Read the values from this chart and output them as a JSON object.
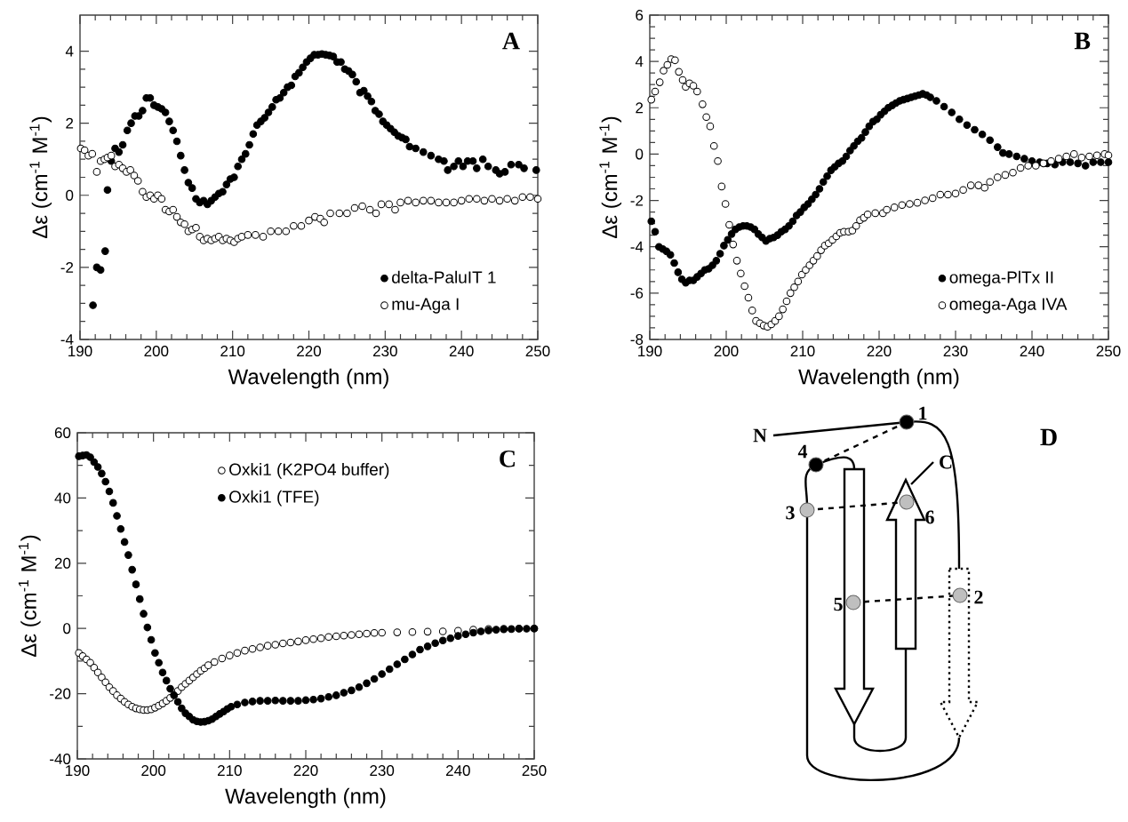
{
  "chart_data": [
    {
      "type": "scatter",
      "title": "A",
      "xlabel": "Wavelength (nm)",
      "ylabel": "Δε (cm$^{-1}$ M$^{-1}$)",
      "xlim": [
        190,
        250
      ],
      "ylim": [
        -4,
        5
      ],
      "xticks": [
        190,
        200,
        210,
        220,
        230,
        240,
        250
      ],
      "yticks": [
        -4,
        -2,
        0,
        2,
        4
      ],
      "legend": "bottom right",
      "series": [
        {
          "name": "delta-PaluIT 1",
          "color": "#000000",
          "x": [
            191.7,
            192.2,
            192.7,
            193.3,
            193.6,
            194.1,
            194.6,
            195.1,
            195.6,
            196.2,
            196.7,
            197.2,
            197.7,
            198.2,
            198.7,
            199.2,
            199.7,
            200.2,
            200.7,
            201.2,
            201.7,
            202.2,
            202.7,
            203.2,
            203.7,
            204.2,
            204.7,
            205.2,
            205.7,
            206.2,
            206.7,
            207.2,
            207.7,
            208.2,
            208.7,
            209.2,
            209.7,
            210.2,
            210.7,
            211.2,
            211.7,
            212.2,
            212.7,
            213.2,
            213.7,
            214.2,
            214.7,
            215.2,
            215.7,
            216.2,
            216.7,
            217.2,
            217.7,
            218.2,
            218.7,
            219.2,
            219.7,
            220.2,
            220.7,
            221.2,
            221.7,
            222.2,
            222.7,
            223.2,
            223.7,
            224.2,
            224.7,
            225.2,
            225.7,
            226.2,
            226.7,
            227.2,
            227.7,
            228.2,
            228.7,
            229.2,
            229.7,
            230.2,
            230.7,
            231.2,
            231.7,
            232.2,
            232.7,
            233.2,
            234,
            235,
            236,
            237,
            237.7,
            238.2,
            239,
            239.6,
            240.2,
            240.8,
            241.5,
            242,
            242.8,
            243.5,
            244.5,
            245,
            245.7,
            246.5,
            247.5,
            248.2,
            249.8
          ],
          "values": [
            -3.05,
            -2.0,
            -2.07,
            -1.55,
            0.15,
            0.95,
            1.3,
            1.2,
            1.4,
            1.8,
            2.0,
            2.2,
            2.2,
            2.35,
            2.7,
            2.7,
            2.5,
            2.45,
            2.4,
            2.3,
            2.05,
            1.8,
            1.5,
            1.1,
            0.7,
            0.35,
            0.2,
            -0.1,
            -0.2,
            -0.15,
            -0.25,
            -0.15,
            -0.05,
            0.05,
            0.1,
            0.3,
            0.45,
            0.5,
            0.8,
            1.0,
            1.15,
            1.4,
            1.7,
            1.95,
            2.05,
            2.15,
            2.3,
            2.45,
            2.65,
            2.7,
            2.85,
            3.0,
            3.05,
            3.3,
            3.4,
            3.55,
            3.7,
            3.8,
            3.9,
            3.9,
            3.92,
            3.9,
            3.88,
            3.85,
            3.7,
            3.7,
            3.5,
            3.45,
            3.35,
            3.15,
            2.85,
            2.9,
            2.75,
            2.6,
            2.35,
            2.25,
            2.05,
            1.95,
            1.85,
            1.75,
            1.65,
            1.6,
            1.55,
            1.35,
            1.3,
            1.2,
            1.1,
            1.0,
            0.95,
            0.7,
            0.8,
            0.95,
            0.8,
            0.95,
            0.95,
            0.75,
            1.0,
            0.8,
            0.7,
            0.6,
            0.65,
            0.85,
            0.85,
            0.75,
            0.7
          ]
        },
        {
          "name": "mu-Aga I",
          "color": "#ffffff",
          "x": [
            190.1,
            190.6,
            191.1,
            191.6,
            192.2,
            192.7,
            193.2,
            193.6,
            194.1,
            194.6,
            195.1,
            195.6,
            196.1,
            196.6,
            197.1,
            197.6,
            198.2,
            198.7,
            199.2,
            199.7,
            200.2,
            200.7,
            201.2,
            201.7,
            202.2,
            202.7,
            203.2,
            203.7,
            204.2,
            204.7,
            205.2,
            205.7,
            206.2,
            206.7,
            207.2,
            207.7,
            208.2,
            208.7,
            209.2,
            209.7,
            210.2,
            210.7,
            211.2,
            212,
            213,
            214,
            215,
            216,
            217,
            218,
            219,
            220,
            220.8,
            221.5,
            222,
            222.8,
            224,
            225,
            226,
            227,
            228,
            228.8,
            229.5,
            230.5,
            231.3,
            232,
            233,
            234,
            235,
            236,
            237,
            238,
            239,
            240,
            241,
            242,
            243,
            244,
            245,
            246,
            247,
            248,
            249,
            250
          ],
          "values": [
            1.3,
            1.25,
            1.1,
            1.15,
            0.65,
            0.95,
            1.0,
            1.05,
            1.1,
            0.8,
            0.85,
            0.75,
            0.65,
            0.7,
            0.55,
            0.4,
            0.1,
            -0.05,
            0.0,
            -0.1,
            0.0,
            -0.1,
            -0.4,
            -0.45,
            -0.4,
            -0.6,
            -0.75,
            -0.8,
            -1.0,
            -0.95,
            -0.9,
            -1.15,
            -1.25,
            -1.2,
            -1.25,
            -1.2,
            -1.15,
            -1.25,
            -1.2,
            -1.25,
            -1.3,
            -1.2,
            -1.15,
            -1.1,
            -1.1,
            -1.15,
            -1.0,
            -1.0,
            -1.0,
            -0.85,
            -0.85,
            -0.7,
            -0.6,
            -0.65,
            -0.75,
            -0.5,
            -0.5,
            -0.5,
            -0.35,
            -0.3,
            -0.4,
            -0.5,
            -0.25,
            -0.25,
            -0.4,
            -0.2,
            -0.15,
            -0.2,
            -0.15,
            -0.15,
            -0.2,
            -0.2,
            -0.2,
            -0.15,
            -0.1,
            -0.1,
            -0.15,
            -0.1,
            -0.15,
            -0.1,
            -0.15,
            -0.05,
            -0.05,
            -0.1
          ]
        }
      ]
    },
    {
      "type": "scatter",
      "title": "B",
      "xlabel": "Wavelength (nm)",
      "ylabel": "Δε (cm$^{-1}$ M$^{-1}$)",
      "xlim": [
        190,
        250
      ],
      "ylim": [
        -8,
        6
      ],
      "xticks": [
        190,
        200,
        210,
        220,
        230,
        240,
        250
      ],
      "yticks": [
        -8,
        -6,
        -4,
        -2,
        0,
        2,
        4,
        6
      ],
      "legend": "bottom right",
      "series": [
        {
          "name": "omega-PlTx II",
          "color": "#000000",
          "x": [
            190.2,
            190.7,
            191.2,
            191.7,
            192.2,
            192.7,
            193.2,
            193.7,
            194.2,
            194.7,
            195.2,
            195.7,
            196.2,
            196.7,
            197.2,
            197.7,
            198.2,
            198.7,
            199.2,
            199.7,
            200.2,
            200.7,
            201.2,
            201.7,
            202.2,
            202.7,
            203.2,
            203.7,
            204.2,
            204.7,
            205.2,
            205.7,
            206.2,
            206.7,
            207.2,
            207.7,
            208.2,
            208.7,
            209.2,
            209.7,
            210.2,
            210.7,
            211.2,
            211.7,
            212.2,
            212.7,
            213.2,
            213.7,
            214.2,
            214.7,
            215.2,
            215.7,
            216.2,
            216.7,
            217.2,
            217.7,
            218.2,
            218.7,
            219.2,
            219.7,
            220.2,
            220.7,
            221.2,
            221.7,
            222.2,
            222.7,
            223.2,
            223.7,
            224.2,
            224.7,
            225.2,
            225.7,
            226.2,
            226.7,
            227.5,
            228.5,
            229.5,
            230.5,
            231.5,
            232.5,
            233.5,
            234.5,
            235.5,
            236.2,
            237,
            238,
            239,
            240,
            241,
            242,
            243,
            244,
            245,
            246,
            247,
            248,
            249,
            250
          ],
          "values": [
            -2.9,
            -3.35,
            -4.0,
            -4.1,
            -4.2,
            -4.35,
            -4.7,
            -5.1,
            -5.4,
            -5.55,
            -5.45,
            -5.45,
            -5.3,
            -5.15,
            -5.0,
            -4.95,
            -4.8,
            -4.6,
            -4.3,
            -3.95,
            -3.7,
            -3.45,
            -3.25,
            -3.15,
            -3.1,
            -3.1,
            -3.15,
            -3.25,
            -3.45,
            -3.6,
            -3.75,
            -3.65,
            -3.6,
            -3.5,
            -3.35,
            -3.25,
            -3.1,
            -2.9,
            -2.65,
            -2.5,
            -2.3,
            -2.15,
            -1.95,
            -1.75,
            -1.5,
            -1.2,
            -0.95,
            -0.7,
            -0.55,
            -0.4,
            -0.3,
            -0.1,
            0.15,
            0.35,
            0.55,
            0.7,
            0.95,
            1.2,
            1.4,
            1.5,
            1.7,
            1.85,
            2.0,
            2.1,
            2.2,
            2.3,
            2.35,
            2.4,
            2.45,
            2.5,
            2.55,
            2.6,
            2.55,
            2.45,
            2.3,
            2.05,
            1.8,
            1.5,
            1.25,
            1.05,
            0.85,
            0.6,
            0.3,
            0.05,
            0.0,
            -0.1,
            -0.2,
            -0.3,
            -0.35,
            -0.4,
            -0.45,
            -0.35,
            -0.35,
            -0.4,
            -0.5,
            -0.35,
            -0.35,
            -0.35
          ]
        },
        {
          "name": "omega-Aga IVA",
          "color": "#ffffff",
          "x": [
            190.2,
            190.7,
            191.3,
            191.8,
            192.3,
            192.8,
            193.3,
            193.8,
            194.3,
            194.7,
            195.2,
            195.7,
            196.2,
            196.9,
            197.4,
            197.9,
            198.4,
            198.9,
            199.4,
            199.9,
            200.4,
            200.9,
            201.4,
            201.9,
            202.4,
            202.9,
            203.4,
            203.9,
            204.4,
            204.9,
            205.4,
            205.9,
            206.4,
            206.9,
            207.4,
            207.9,
            208.4,
            208.9,
            209.4,
            209.9,
            210.4,
            210.9,
            211.4,
            211.9,
            212.4,
            212.9,
            213.4,
            213.9,
            214.4,
            214.9,
            215.4,
            216,
            216.5,
            217,
            217.5,
            218,
            218.5,
            219.5,
            220.5,
            221,
            222,
            223,
            224,
            225,
            226,
            227,
            228,
            229,
            230,
            231,
            232,
            233,
            233.8,
            234.5,
            235.5,
            236.5,
            237.5,
            238.5,
            239.5,
            240.5,
            241.5,
            242.5,
            243.5,
            244.5,
            245.5,
            246.5,
            247.5,
            248.5,
            249.5,
            250
          ],
          "values": [
            2.35,
            2.7,
            3.1,
            3.6,
            3.85,
            4.1,
            4.05,
            3.55,
            3.2,
            2.9,
            3.05,
            2.95,
            2.7,
            2.15,
            1.6,
            1.2,
            0.35,
            -0.3,
            -1.4,
            -2.15,
            -3.05,
            -3.9,
            -4.6,
            -5.15,
            -5.7,
            -6.2,
            -6.75,
            -7.2,
            -7.3,
            -7.4,
            -7.45,
            -7.35,
            -7.2,
            -7.0,
            -6.7,
            -6.35,
            -6.0,
            -5.75,
            -5.5,
            -5.2,
            -5.0,
            -4.8,
            -4.6,
            -4.4,
            -4.15,
            -3.95,
            -3.85,
            -3.7,
            -3.55,
            -3.4,
            -3.35,
            -3.35,
            -3.3,
            -3.1,
            -2.85,
            -2.75,
            -2.6,
            -2.55,
            -2.55,
            -2.4,
            -2.3,
            -2.2,
            -2.15,
            -2.1,
            -2.0,
            -1.9,
            -1.75,
            -1.75,
            -1.7,
            -1.55,
            -1.35,
            -1.35,
            -1.45,
            -1.2,
            -1.0,
            -0.9,
            -0.8,
            -0.6,
            -0.5,
            -0.5,
            -0.4,
            -0.3,
            -0.2,
            -0.1,
            0.0,
            -0.15,
            -0.1,
            -0.05,
            0.0,
            -0.05
          ]
        }
      ]
    },
    {
      "type": "scatter",
      "title": "C",
      "xlabel": "Wavelength (nm)",
      "ylabel": "Δε (cm$^{-1}$ M$^{-1}$)",
      "xlim": [
        190,
        250
      ],
      "ylim": [
        -40,
        60
      ],
      "xticks": [
        190,
        200,
        210,
        220,
        230,
        240,
        250
      ],
      "yticks": [
        -40,
        -20,
        0,
        20,
        40,
        60
      ],
      "legend": "top",
      "series": [
        {
          "name": "Oxki1 (K2PO4 buffer)",
          "color": "#ffffff",
          "x": [
            190.2,
            190.7,
            191.2,
            191.7,
            192.2,
            192.7,
            193.2,
            193.7,
            194.2,
            194.7,
            195.2,
            195.7,
            196.2,
            196.7,
            197.2,
            197.7,
            198.2,
            198.7,
            199.2,
            199.7,
            200.2,
            200.7,
            201.2,
            201.7,
            202.2,
            202.7,
            203.2,
            203.7,
            204.2,
            204.7,
            205.2,
            205.7,
            206.2,
            206.7,
            207.2,
            208,
            209,
            210,
            211,
            212,
            213,
            214,
            215,
            216,
            217,
            218,
            219,
            220,
            221,
            222,
            223,
            224,
            225,
            226,
            227,
            228,
            229,
            230,
            232,
            234,
            236,
            238,
            240,
            242,
            244,
            246,
            248,
            250
          ],
          "values": [
            -7.5,
            -8.5,
            -9.5,
            -10.5,
            -12,
            -13.5,
            -15,
            -16.5,
            -18,
            -19.2,
            -20.5,
            -21.5,
            -22.5,
            -23.3,
            -24,
            -24.5,
            -24.8,
            -25,
            -25,
            -24.8,
            -24.3,
            -23.7,
            -23,
            -22.2,
            -21.3,
            -20.3,
            -19.2,
            -18,
            -17,
            -16,
            -15,
            -14,
            -13,
            -12.2,
            -11.3,
            -10.3,
            -9.2,
            -8.3,
            -7.5,
            -6.8,
            -6.3,
            -5.8,
            -5.3,
            -5,
            -4.6,
            -4.3,
            -4,
            -3.6,
            -3.3,
            -3,
            -2.6,
            -2.4,
            -2.2,
            -2,
            -1.8,
            -1.6,
            -1.4,
            -1.3,
            -1.2,
            -1.1,
            -1,
            -0.9,
            -0.7,
            -0.4,
            -0.2,
            -0.1,
            0,
            0
          ]
        },
        {
          "name": "Oxki1 (TFE)",
          "color": "#000000",
          "x": [
            190.2,
            190.7,
            191.2,
            191.7,
            192.2,
            192.7,
            193.2,
            193.7,
            194.2,
            194.7,
            195.2,
            195.7,
            196.2,
            196.7,
            197.2,
            197.7,
            198.2,
            198.7,
            199.2,
            199.7,
            200.2,
            200.7,
            201.2,
            201.7,
            202.2,
            202.7,
            203.2,
            203.7,
            204.2,
            204.7,
            205.2,
            205.7,
            206.2,
            206.7,
            207.2,
            207.7,
            208.2,
            208.7,
            209.2,
            209.7,
            210.2,
            211,
            212,
            213,
            214,
            215,
            216,
            217,
            218,
            219,
            220,
            221,
            222,
            223,
            224,
            225,
            226,
            227,
            228,
            229,
            230,
            231,
            232,
            233,
            234,
            235,
            236,
            237,
            238,
            239,
            240,
            241,
            242,
            243,
            244,
            245,
            246,
            247,
            248,
            249,
            250
          ],
          "values": [
            52.8,
            53,
            53.2,
            52.5,
            51,
            49.5,
            47.5,
            45,
            42,
            38.5,
            34.5,
            30.5,
            26.5,
            22.5,
            18,
            13.5,
            9,
            4.5,
            0.3,
            -3.5,
            -7.5,
            -10.5,
            -13.5,
            -16,
            -18.5,
            -20.5,
            -22.5,
            -24.5,
            -26,
            -27,
            -28,
            -28.5,
            -28.7,
            -28.6,
            -28.3,
            -27.8,
            -27,
            -26.2,
            -25.5,
            -24.7,
            -24,
            -23.3,
            -22.7,
            -22.4,
            -22.2,
            -22.2,
            -22.1,
            -22.2,
            -22.2,
            -22.2,
            -22,
            -21.8,
            -21.5,
            -21,
            -20.5,
            -19.7,
            -19,
            -18,
            -16.8,
            -15.5,
            -14,
            -12.5,
            -11,
            -9.5,
            -8,
            -6.5,
            -5.5,
            -4.5,
            -3.7,
            -3,
            -2.3,
            -1.8,
            -1.3,
            -0.9,
            -0.6,
            -0.4,
            -0.3,
            -0.2,
            -0.1,
            -0.1,
            0.0
          ]
        }
      ]
    },
    {
      "type": "other",
      "title": "D",
      "annotations": [
        "N",
        "1",
        "2",
        "3",
        "4",
        "5",
        "6",
        "C"
      ]
    }
  ]
}
